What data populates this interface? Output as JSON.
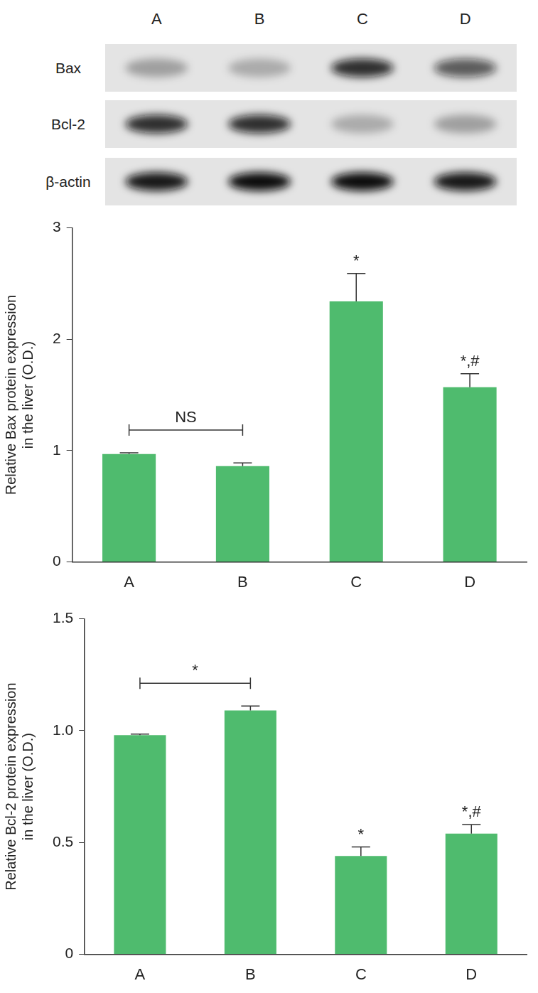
{
  "blot": {
    "lanes": [
      "A",
      "B",
      "C",
      "D"
    ],
    "rows": [
      {
        "label": "Bax",
        "intensity": [
          0.3,
          0.25,
          0.85,
          0.65
        ]
      },
      {
        "label": "Bcl-2",
        "intensity": [
          0.85,
          0.85,
          0.25,
          0.3
        ]
      },
      {
        "label": "β-actin",
        "intensity": [
          0.95,
          1,
          1,
          0.95
        ]
      }
    ]
  },
  "chart_data": [
    {
      "type": "bar",
      "y_label": [
        "Relative Bax protein expression",
        "in the liver (O.D.)"
      ],
      "categories": [
        "A",
        "B",
        "C",
        "D"
      ],
      "values": [
        0.97,
        0.86,
        2.34,
        1.57
      ],
      "errors": [
        0.01,
        0.03,
        0.25,
        0.12
      ],
      "color": "#4fbb6e",
      "ylim": [
        0,
        3
      ],
      "yticks": [
        0,
        1,
        2,
        3
      ],
      "grid": false,
      "annotations": [
        {
          "category": "C",
          "text": "*"
        },
        {
          "category": "D",
          "text": "*,#"
        }
      ],
      "brackets": [
        {
          "from": "A",
          "to": "B",
          "text": "NS"
        }
      ]
    },
    {
      "type": "bar",
      "y_label": [
        "Relative Bcl-2 protein expression",
        "in the liver (O.D.)"
      ],
      "categories": [
        "A",
        "B",
        "C",
        "D"
      ],
      "values": [
        0.98,
        1.09,
        0.44,
        0.54
      ],
      "errors": [
        0.005,
        0.02,
        0.04,
        0.04
      ],
      "color": "#4fbb6e",
      "ylim": [
        0,
        1.5
      ],
      "yticks": [
        0,
        0.5,
        {
          "value": 1,
          "label": "1.0"
        },
        1.5
      ],
      "grid": false,
      "annotations": [
        {
          "category": "C",
          "text": "*"
        },
        {
          "category": "D",
          "text": "*,#"
        }
      ],
      "brackets": [
        {
          "from": "A",
          "to": "B",
          "text": "*"
        }
      ]
    }
  ]
}
